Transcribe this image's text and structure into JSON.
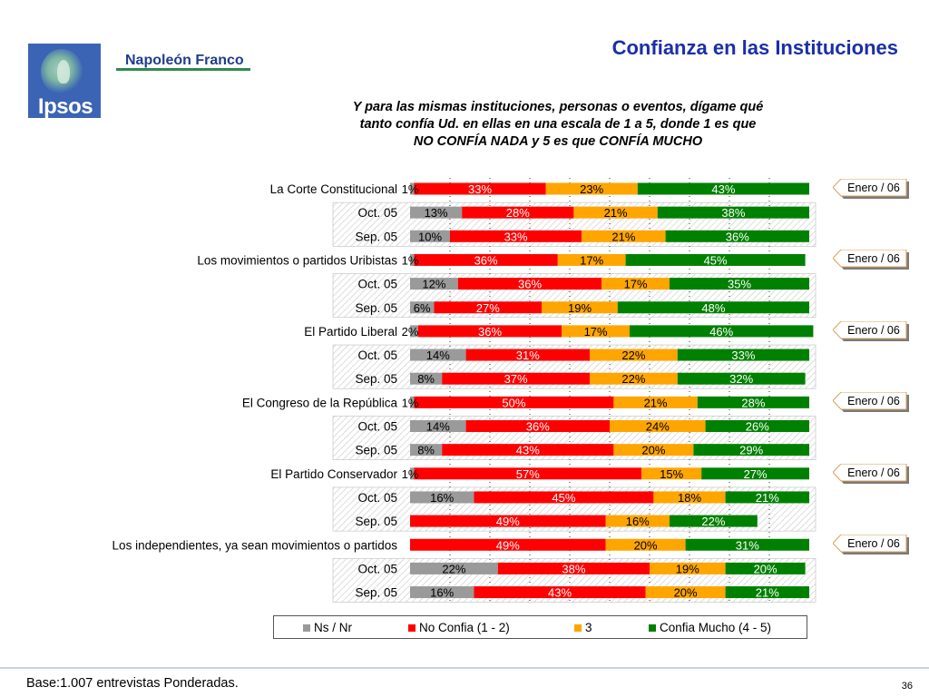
{
  "header": {
    "logo_text": "Ipsos",
    "brand": "Napoleón Franco",
    "title": "Confianza en las Instituciones",
    "subtitle_lines": [
      "Y para las mismas instituciones, personas o eventos, dígame qué",
      "tanto confía Ud. en ellas en una escala de 1 a 5, donde 1 es que",
      "NO CONFÍA NADA y 5 es que CONFÍA MUCHO"
    ]
  },
  "badge_label": "Enero / 06",
  "footer": {
    "base": "Base:1.007 entrevistas Ponderadas.",
    "page": "36"
  },
  "colors": {
    "ns": "#9a9a9a",
    "no": "#ff0000",
    "three": "#ffa500",
    "mucho": "#008000",
    "title": "#1a2fa8"
  },
  "chart_data": {
    "type": "bar",
    "orientation": "horizontal",
    "stacked": true,
    "xlim": [
      0,
      100
    ],
    "series_names": [
      "Ns / Nr",
      "No Confia (1 - 2)",
      "3",
      "Confia Mucho (4 - 5)"
    ],
    "rows": [
      {
        "label": "La Corte Constitucional",
        "main": true,
        "values": [
          1,
          33,
          23,
          43
        ]
      },
      {
        "label": "Oct. 05",
        "main": false,
        "values": [
          13,
          28,
          21,
          38
        ]
      },
      {
        "label": "Sep. 05",
        "main": false,
        "values": [
          10,
          33,
          21,
          36
        ]
      },
      {
        "label": "Los movimientos o partidos Uribistas",
        "main": true,
        "values": [
          1,
          36,
          17,
          45
        ]
      },
      {
        "label": "Oct. 05",
        "main": false,
        "values": [
          12,
          36,
          17,
          35
        ]
      },
      {
        "label": "Sep. 05",
        "main": false,
        "values": [
          6,
          27,
          19,
          48
        ]
      },
      {
        "label": "El Partido Liberal",
        "main": true,
        "values": [
          2,
          36,
          17,
          46
        ]
      },
      {
        "label": "Oct. 05",
        "main": false,
        "values": [
          14,
          31,
          22,
          33
        ]
      },
      {
        "label": "Sep. 05",
        "main": false,
        "values": [
          8,
          37,
          22,
          32
        ]
      },
      {
        "label": "El Congreso de la República",
        "main": true,
        "values": [
          1,
          50,
          21,
          28
        ]
      },
      {
        "label": "Oct. 05",
        "main": false,
        "values": [
          14,
          36,
          24,
          26
        ]
      },
      {
        "label": "Sep. 05",
        "main": false,
        "values": [
          8,
          43,
          20,
          29
        ]
      },
      {
        "label": "El Partido Conservador",
        "main": true,
        "values": [
          1,
          57,
          15,
          27
        ]
      },
      {
        "label": "Oct. 05",
        "main": false,
        "values": [
          16,
          45,
          18,
          21
        ]
      },
      {
        "label": "Sep. 05",
        "main": false,
        "values": [
          0,
          49,
          16,
          22
        ]
      },
      {
        "label": "Los independientes, ya sean movimientos o partidos",
        "main": true,
        "values": [
          0,
          49,
          20,
          31
        ]
      },
      {
        "label": "Oct. 05",
        "main": false,
        "values": [
          22,
          38,
          19,
          20
        ]
      },
      {
        "label": "Sep. 05",
        "main": false,
        "values": [
          16,
          43,
          20,
          21
        ]
      }
    ]
  }
}
